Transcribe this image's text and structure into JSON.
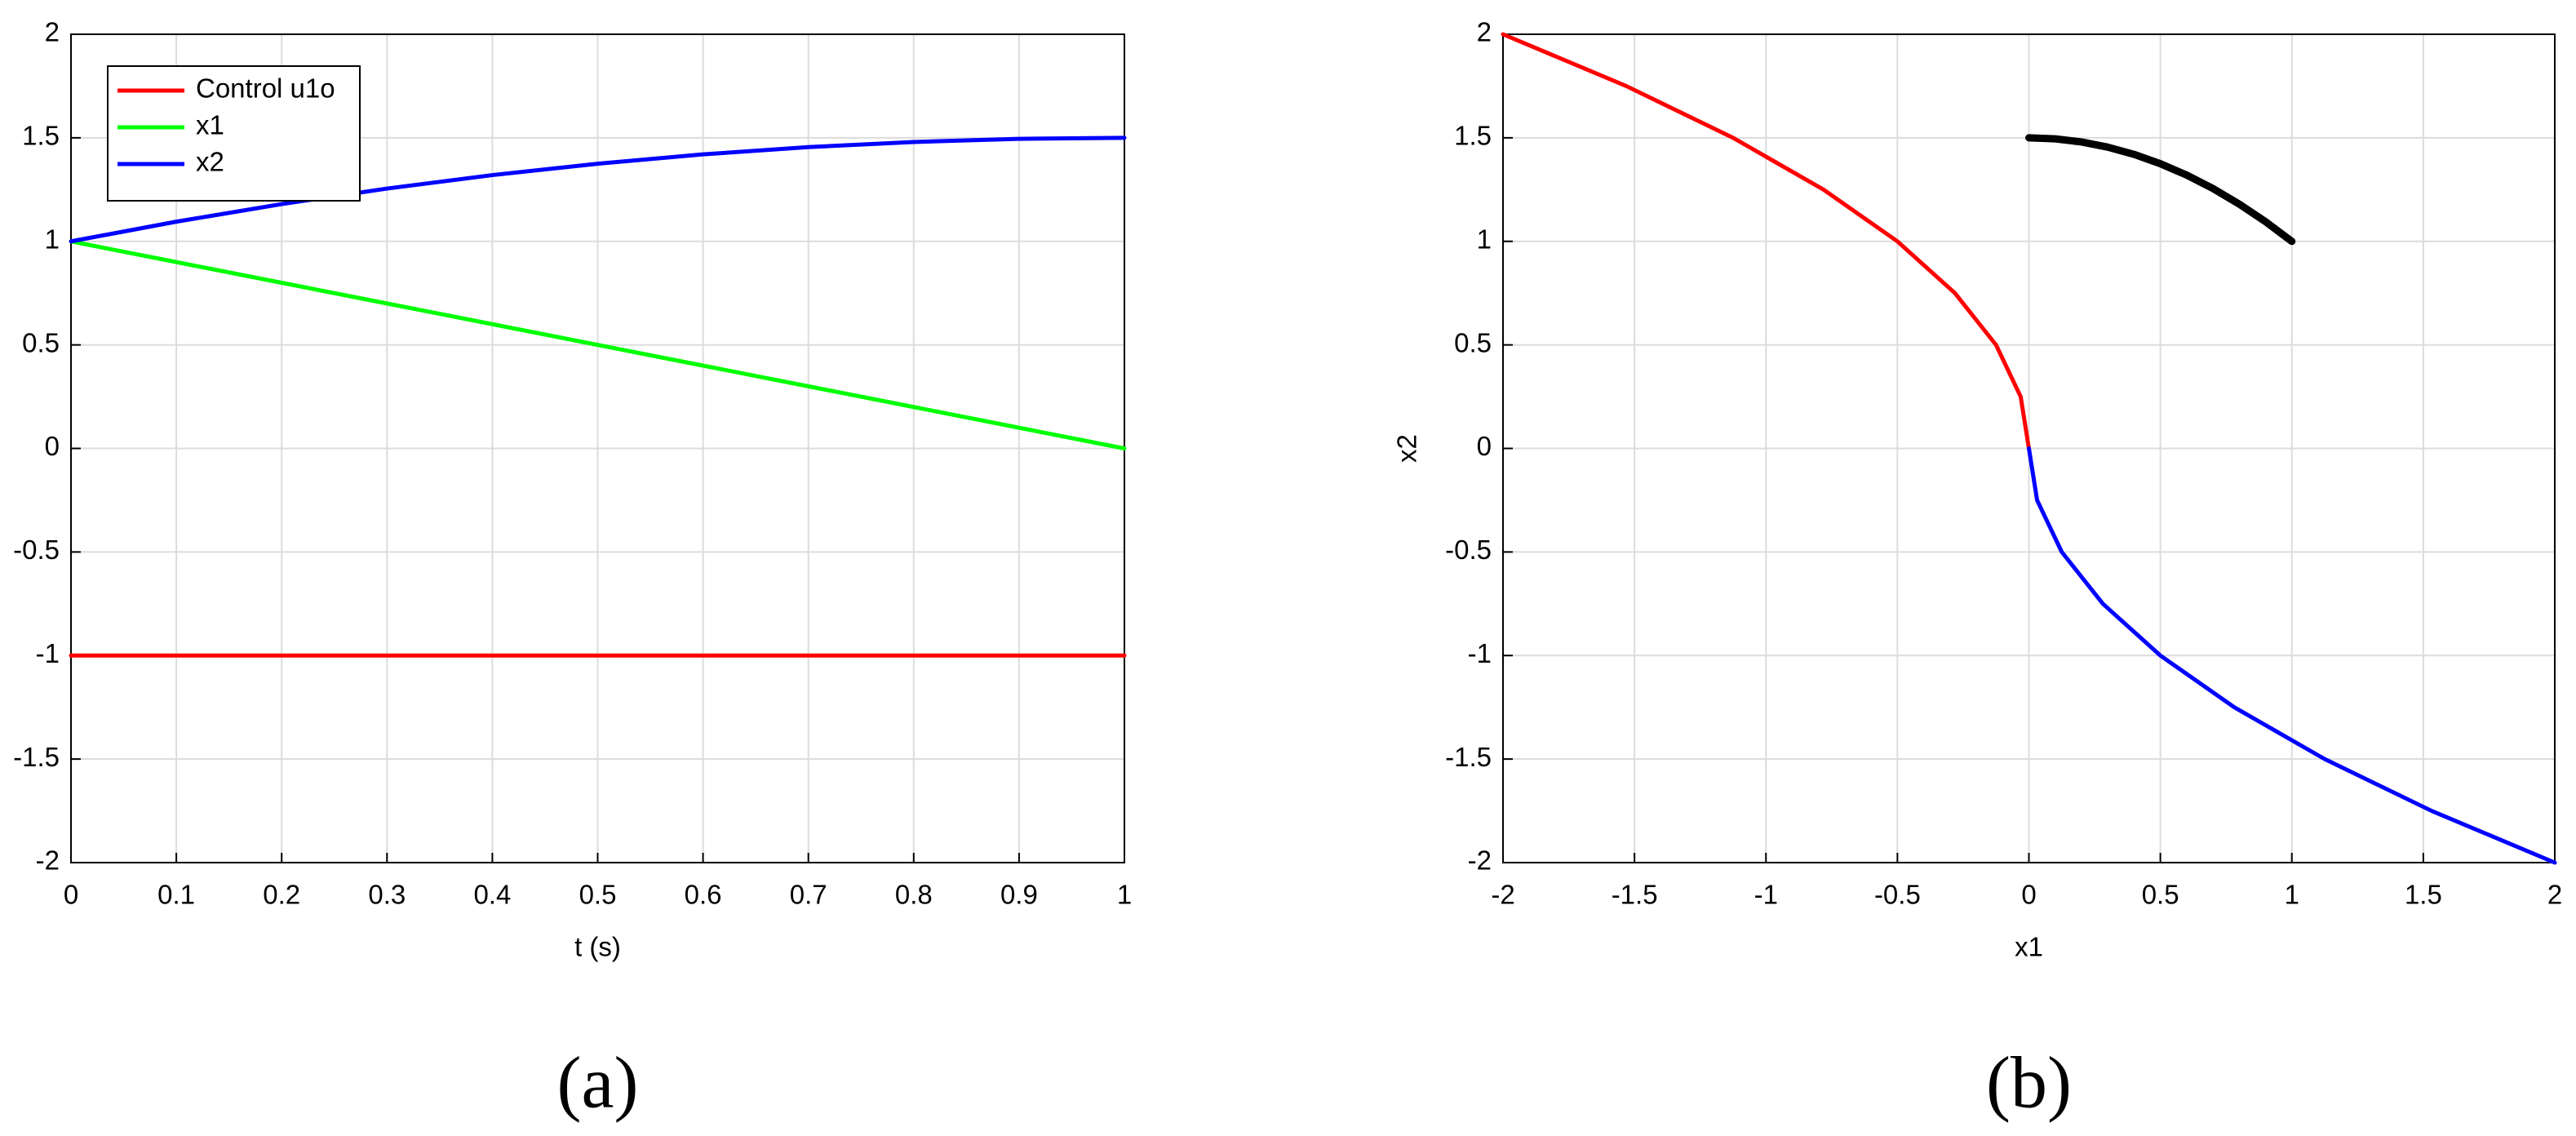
{
  "chart_data": [
    {
      "type": "line",
      "caption": "(a)",
      "xlabel": "t (s)",
      "legend": "upper left",
      "grid": true,
      "x": [
        0,
        0.1,
        0.2,
        0.3,
        0.4,
        0.5,
        0.6,
        0.7,
        0.8,
        0.9,
        1
      ],
      "xlim": [
        0,
        1
      ],
      "xticks": [
        0,
        0.1,
        0.2,
        0.3,
        0.4,
        0.5,
        0.6,
        0.7,
        0.8,
        0.9,
        1
      ],
      "ylim": [
        -2,
        2
      ],
      "yticks": [
        -2,
        -1.5,
        -1,
        -0.5,
        0,
        0.5,
        1,
        1.5,
        2
      ],
      "series": [
        {
          "name": "Control u1o",
          "color": "#ff0000",
          "values": [
            -1,
            -1,
            -1,
            -1,
            -1,
            -1,
            -1,
            -1,
            -1,
            -1,
            -1
          ]
        },
        {
          "name": "x1",
          "color": "#00ff00",
          "values": [
            1,
            0.9,
            0.8,
            0.7,
            0.6,
            0.5,
            0.4,
            0.3,
            0.2,
            0.1,
            0
          ]
        },
        {
          "name": "x2",
          "color": "#0000ff",
          "values": [
            1,
            1.095,
            1.18,
            1.255,
            1.32,
            1.375,
            1.42,
            1.455,
            1.48,
            1.495,
            1.5
          ]
        }
      ]
    },
    {
      "type": "line",
      "caption": "(b)",
      "xlabel": "x1",
      "ylabel": "x2",
      "grid": true,
      "xlim": [
        -2,
        2
      ],
      "xticks": [
        -2,
        -1.5,
        -1,
        -0.5,
        0,
        0.5,
        1,
        1.5,
        2
      ],
      "ylim": [
        -2,
        2
      ],
      "yticks": [
        -2,
        -1.5,
        -1,
        -0.5,
        0,
        0.5,
        1,
        1.5,
        2
      ],
      "series": [
        {
          "color": "#ff0000",
          "x": [
            -2,
            -1.53125,
            -1.125,
            -0.78125,
            -0.5,
            -0.28125,
            -0.125,
            -0.03125,
            0
          ],
          "values": [
            2,
            1.75,
            1.5,
            1.25,
            1,
            0.75,
            0.5,
            0.25,
            0
          ]
        },
        {
          "color": "#0000ff",
          "x": [
            0,
            0.03125,
            0.125,
            0.28125,
            0.5,
            0.78125,
            1.125,
            1.53125,
            2
          ],
          "values": [
            0,
            -0.25,
            -0.5,
            -0.75,
            -1,
            -1.25,
            -1.5,
            -1.75,
            -2
          ]
        },
        {
          "color": "#000000",
          "x": [
            1,
            0.9,
            0.8,
            0.7,
            0.6,
            0.5,
            0.4,
            0.3,
            0.2,
            0.1,
            0
          ],
          "values": [
            1,
            1.095,
            1.18,
            1.255,
            1.32,
            1.375,
            1.42,
            1.455,
            1.48,
            1.495,
            1.5
          ],
          "width": 9
        }
      ]
    }
  ]
}
